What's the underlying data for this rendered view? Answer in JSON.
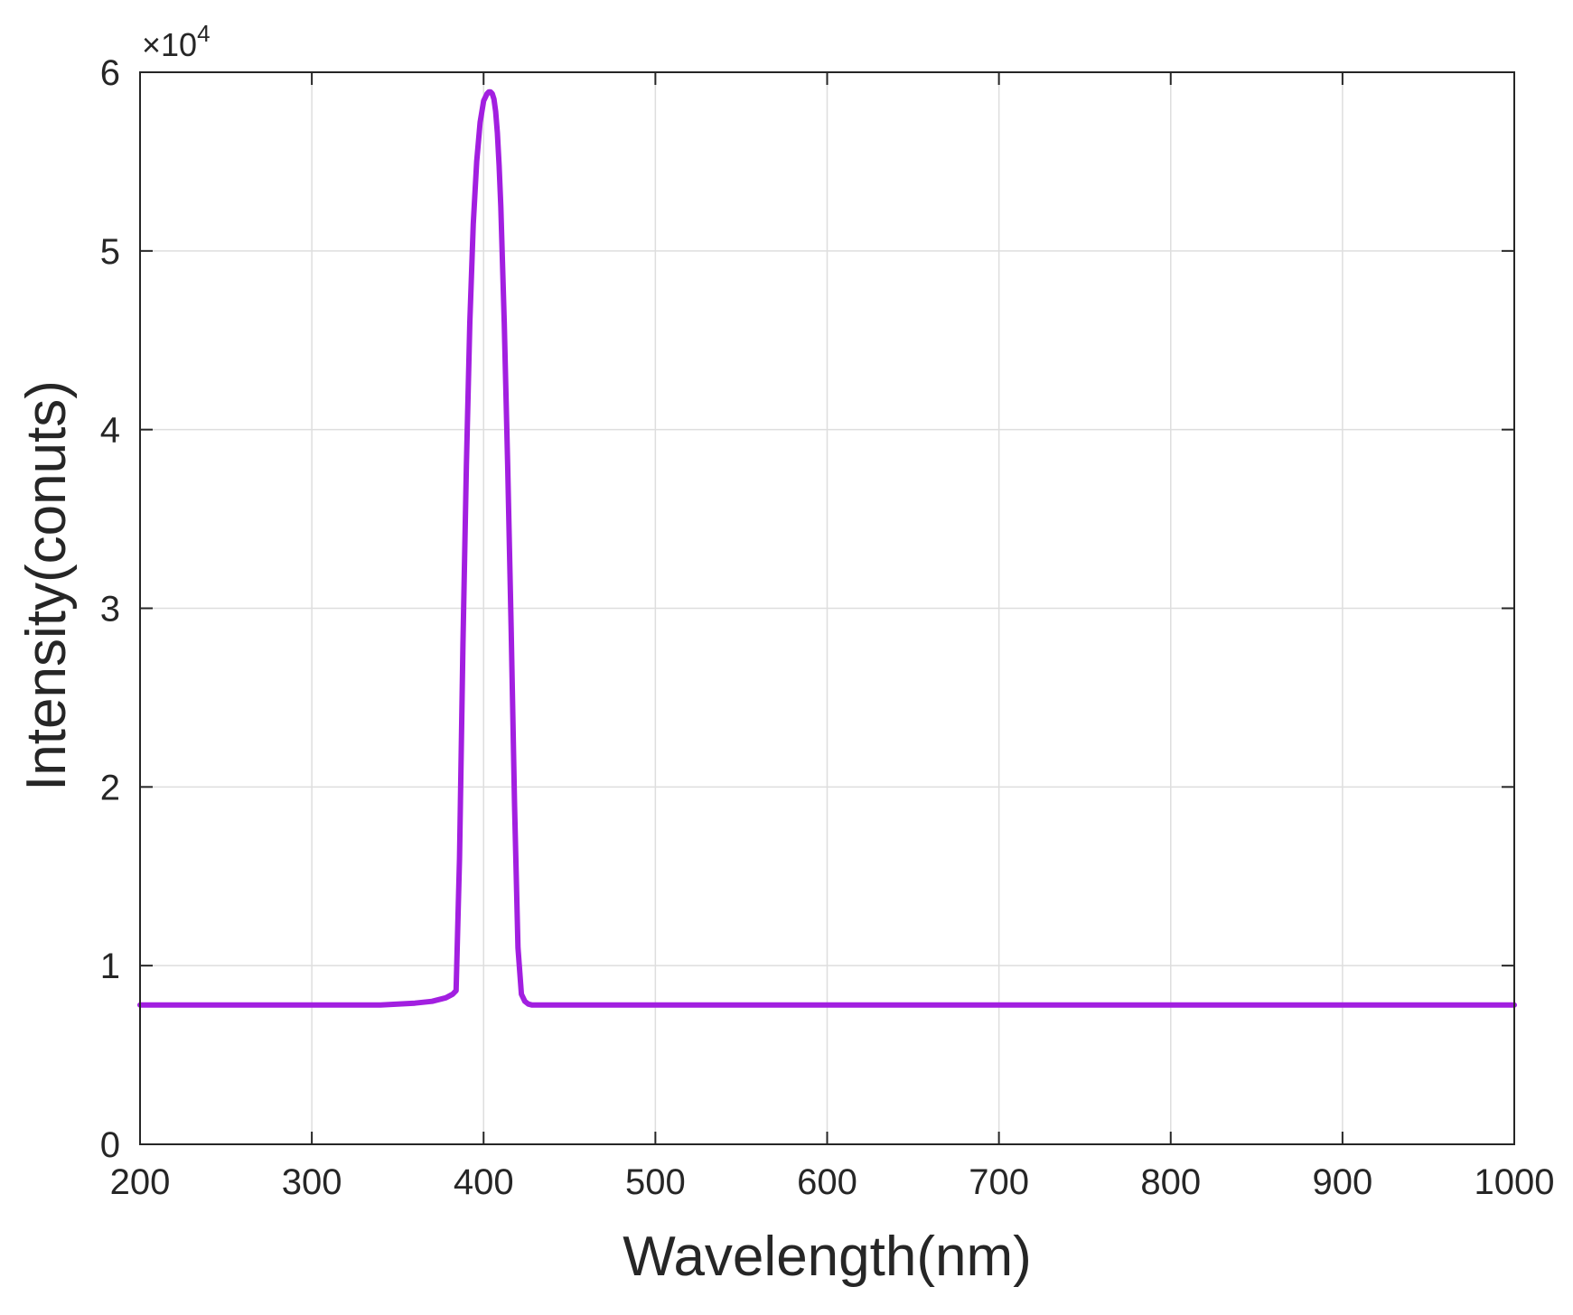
{
  "chart_data": {
    "type": "line",
    "title": "",
    "xlabel": "Wavelength(nm)",
    "ylabel": "Intensity(conuts)",
    "y_exponent": {
      "prefix": "×10",
      "power": "4"
    },
    "xlim": [
      200,
      1000
    ],
    "ylim": [
      0,
      6
    ],
    "x_ticks": [
      200,
      300,
      400,
      500,
      600,
      700,
      800,
      900,
      1000
    ],
    "x_tick_labels": [
      "200",
      "300",
      "400",
      "500",
      "600",
      "700",
      "800",
      "900",
      "1000"
    ],
    "y_ticks": [
      0,
      1,
      2,
      3,
      4,
      5,
      6
    ],
    "y_tick_labels": [
      "0",
      "1",
      "2",
      "3",
      "4",
      "5",
      "6"
    ],
    "grid": true,
    "legend": "none",
    "line_color": "#a21fe0",
    "series": [
      {
        "x": [
          200,
          250,
          300,
          340,
          360,
          370,
          378,
          382,
          384,
          386,
          388,
          390,
          392,
          394,
          396,
          398,
          400,
          402,
          403,
          404,
          405,
          406,
          407,
          408,
          409,
          410,
          412,
          414,
          416,
          418,
          420,
          422,
          424,
          426,
          428,
          432,
          440,
          460,
          500,
          600,
          700,
          800,
          900,
          1000
        ],
        "y": [
          0.78,
          0.78,
          0.78,
          0.78,
          0.79,
          0.8,
          0.82,
          0.84,
          0.86,
          1.6,
          2.8,
          3.8,
          4.6,
          5.15,
          5.5,
          5.72,
          5.84,
          5.88,
          5.89,
          5.89,
          5.88,
          5.85,
          5.78,
          5.66,
          5.48,
          5.25,
          4.6,
          3.8,
          2.9,
          1.9,
          1.1,
          0.84,
          0.8,
          0.785,
          0.78,
          0.78,
          0.78,
          0.78,
          0.78,
          0.78,
          0.78,
          0.78,
          0.78,
          0.78
        ]
      }
    ]
  }
}
